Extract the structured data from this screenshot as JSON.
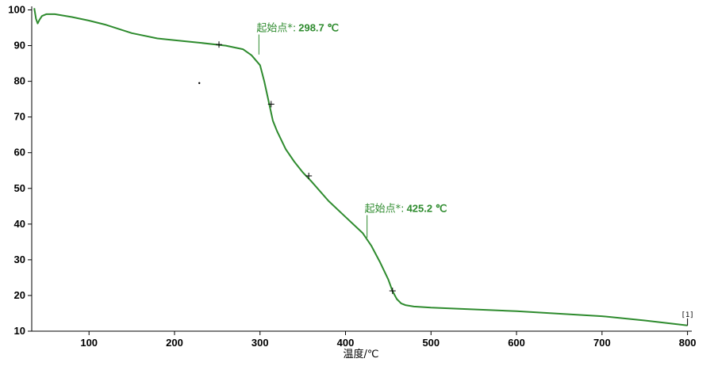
{
  "chart_data": {
    "type": "line",
    "xlabel": "温度/℃",
    "ylabel": "",
    "xlim": [
      33,
      805
    ],
    "ylim": [
      10,
      101
    ],
    "xticks": [
      100,
      200,
      300,
      400,
      500,
      600,
      700,
      800
    ],
    "yticks": [
      10,
      20,
      30,
      40,
      50,
      60,
      70,
      80,
      90,
      100
    ],
    "grid": false,
    "series": [
      {
        "color": "#2e8b2e",
        "x": [
          36,
          38,
          40,
          42,
          45,
          50,
          60,
          80,
          100,
          120,
          150,
          180,
          200,
          230,
          260,
          280,
          290,
          300,
          305,
          310,
          315,
          320,
          330,
          340,
          350,
          360,
          380,
          400,
          420,
          430,
          440,
          450,
          455,
          460,
          465,
          470,
          480,
          500,
          600,
          700,
          750,
          800
        ],
        "y": [
          100.5,
          97.5,
          96.2,
          97.2,
          98.3,
          98.8,
          98.8,
          98.0,
          97.0,
          95.8,
          93.5,
          92.0,
          91.5,
          90.8,
          90.0,
          89.0,
          87.3,
          84.5,
          80.0,
          74.5,
          69.0,
          66.0,
          61.0,
          57.5,
          54.5,
          52.0,
          46.5,
          42.0,
          37.5,
          34.0,
          29.5,
          24.5,
          21.2,
          19.0,
          17.8,
          17.3,
          16.9,
          16.6,
          15.6,
          14.2,
          13.0,
          11.6
        ]
      }
    ],
    "markers": [
      {
        "x": 252,
        "y": 90.3
      },
      {
        "x": 313,
        "y": 73.6
      },
      {
        "x": 357,
        "y": 53.5
      },
      {
        "x": 455,
        "y": 21.3
      }
    ],
    "annotations": [
      {
        "label": "起始点*:",
        "value": "298.7 ℃",
        "x": 298.7,
        "y": 87.5,
        "text_x": 298.7,
        "text_y": 94.0
      },
      {
        "label": "起始点*:",
        "value": "425.2 ℃",
        "x": 425.2,
        "y": 36.2,
        "text_x": 425.2,
        "text_y": 43.4
      }
    ],
    "end_label": "[1]",
    "stray_point": {
      "x": 229,
      "y": 79.5
    }
  }
}
